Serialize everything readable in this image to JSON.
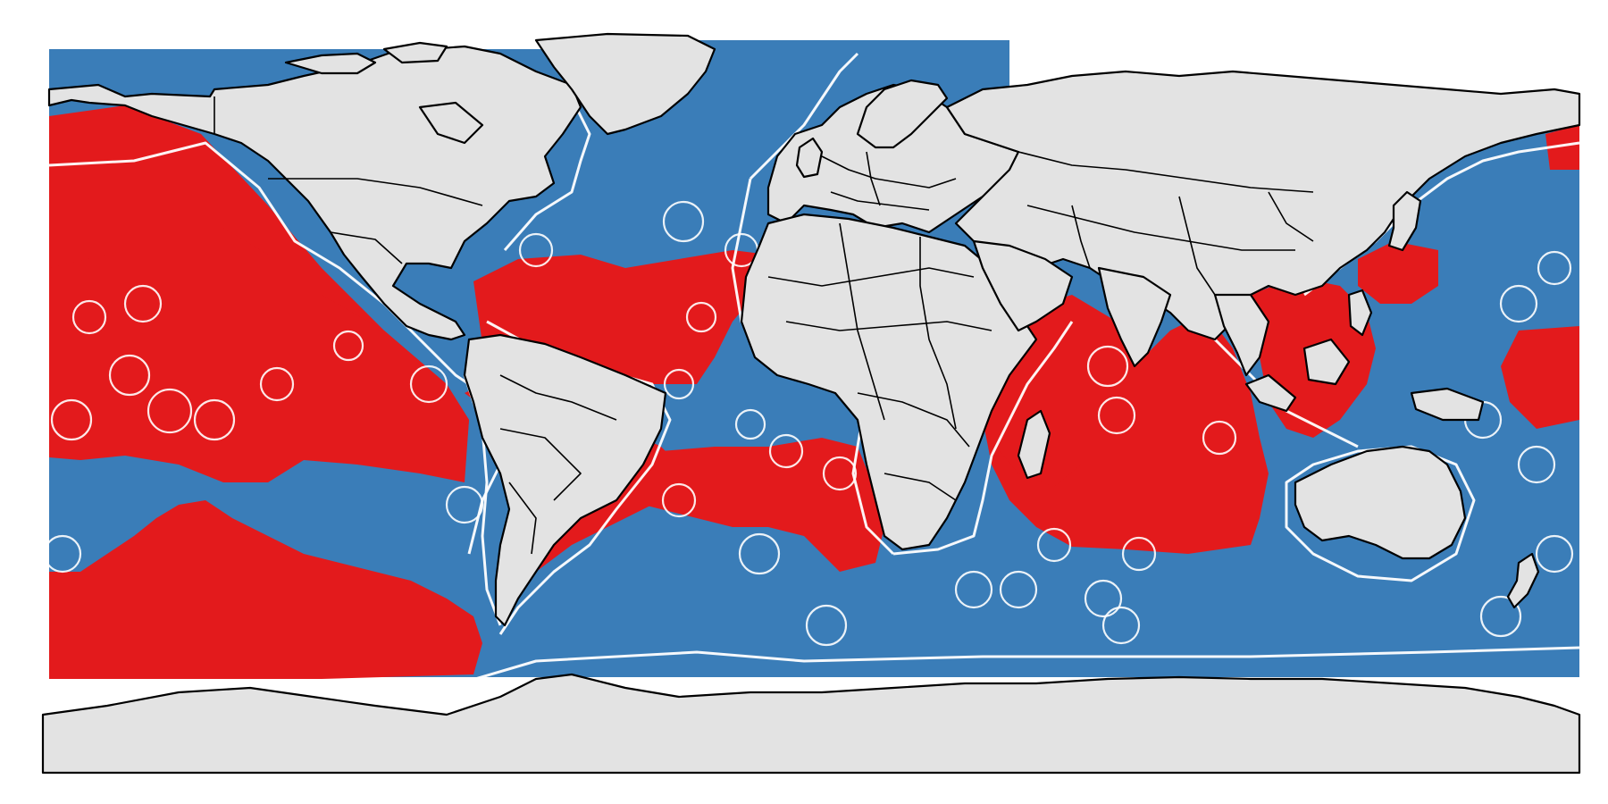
{
  "map": {
    "projection": "equirectangular",
    "colors": {
      "high": "#e31a1c",
      "low": "#3a7db8",
      "land": "#e3e3e3",
      "outline": "#000000",
      "eez": "#ffffff",
      "background": "#ffffff"
    },
    "classes": [
      "high",
      "low"
    ],
    "overlays": [
      "country-borders",
      "eez-boundaries"
    ],
    "legend": "none",
    "title": ""
  }
}
